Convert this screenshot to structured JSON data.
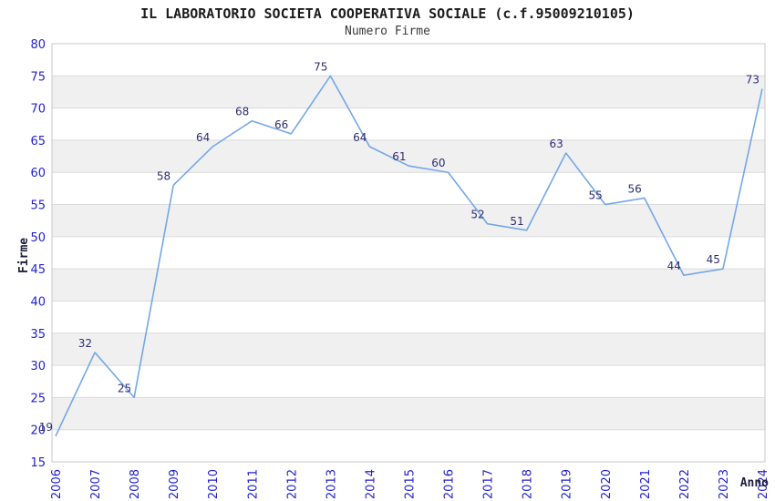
{
  "header": {
    "title": "IL LABORATORIO SOCIETA COOPERATIVA SOCIALE (c.f.95009210105)",
    "subtitle": "Numero Firme"
  },
  "chart_data": {
    "type": "line",
    "title": "IL LABORATORIO SOCIETA COOPERATIVA SOCIALE (c.f.95009210105)",
    "subtitle": "Numero Firme",
    "x": [
      "2006",
      "2007",
      "2008",
      "2009",
      "2010",
      "2011",
      "2012",
      "2013",
      "2014",
      "2015",
      "2016",
      "2017",
      "2018",
      "2019",
      "2020",
      "2021",
      "2022",
      "2023",
      "2024"
    ],
    "values": [
      19,
      32,
      25,
      58,
      64,
      68,
      66,
      75,
      64,
      61,
      60,
      52,
      51,
      63,
      55,
      56,
      44,
      45,
      73
    ],
    "xlabel": "Anno",
    "ylabel": "Firme",
    "ylim": [
      15,
      80
    ],
    "ytick_step": 5,
    "grid": true,
    "legend": "none",
    "colors": {
      "line": "#74a7e8",
      "point_label": "#2e2e72",
      "tick_label": "#2222cc",
      "axis_name": "#1e1e3c",
      "band_fill": "#f0f0f0",
      "grid_line": "#dcdcdc",
      "plot_border": "#c8c8c8",
      "background": "#ffffff"
    }
  }
}
